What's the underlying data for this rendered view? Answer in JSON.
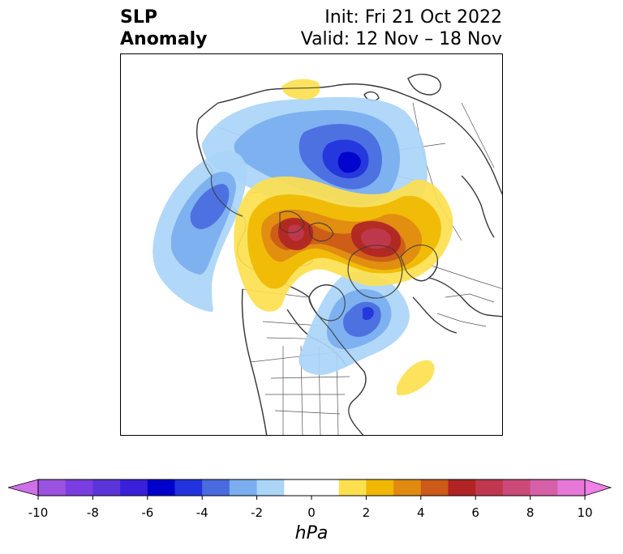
{
  "title": {
    "line1": "SLP",
    "line2": "Anomaly"
  },
  "init": "Init: Fri 21 Oct 2022",
  "valid": "Valid: 12 Nov – 18 Nov",
  "colorbar": {
    "unit": "hPa",
    "ticks": [
      "-10",
      "-8",
      "-6",
      "-4",
      "-2",
      "0",
      "2",
      "4",
      "6",
      "8",
      "10"
    ],
    "bins": [
      {
        "from": -10,
        "to": -9,
        "color": "#9b52e0"
      },
      {
        "from": -9,
        "to": -8,
        "color": "#7a3ee0"
      },
      {
        "from": -8,
        "to": -7,
        "color": "#5b35d8"
      },
      {
        "from": -7,
        "to": -6,
        "color": "#3a20d8"
      },
      {
        "from": -6,
        "to": -5,
        "color": "#0000cc"
      },
      {
        "from": -5,
        "to": -4,
        "color": "#2233dd"
      },
      {
        "from": -4,
        "to": -3,
        "color": "#4a6be0"
      },
      {
        "from": -3,
        "to": -2,
        "color": "#7aaeef"
      },
      {
        "from": -2,
        "to": -1,
        "color": "#aad5f7"
      },
      {
        "from": -1,
        "to": 1,
        "color": "#ffffff"
      },
      {
        "from": 1,
        "to": 2,
        "color": "#fde050"
      },
      {
        "from": 2,
        "to": 3,
        "color": "#f0b800"
      },
      {
        "from": 3,
        "to": 4,
        "color": "#e08a12"
      },
      {
        "from": 4,
        "to": 5,
        "color": "#cc5a18"
      },
      {
        "from": 5,
        "to": 6,
        "color": "#b02424"
      },
      {
        "from": 6,
        "to": 7,
        "color": "#c0384f"
      },
      {
        "from": 7,
        "to": 8,
        "color": "#cc4a78"
      },
      {
        "from": 8,
        "to": 9,
        "color": "#d660a8"
      },
      {
        "from": 9,
        "to": 10,
        "color": "#e878d8"
      }
    ],
    "under_color": "#d070e8",
    "over_color": "#ee80e6"
  },
  "anomalies": [
    {
      "id": "siberia-low",
      "sign": "negative",
      "peak_hpa": -6,
      "levels": [
        -2,
        -3,
        -4,
        -5,
        -6
      ]
    },
    {
      "id": "north-pacific-low",
      "sign": "negative",
      "peak_hpa": -4,
      "levels": [
        -2,
        -3,
        -4
      ]
    },
    {
      "id": "eastern-canada-low",
      "sign": "negative",
      "peak_hpa": -4,
      "levels": [
        -2,
        -3,
        -4
      ]
    },
    {
      "id": "polar-high-west",
      "sign": "positive",
      "peak_hpa": 6,
      "levels": [
        2,
        3,
        4,
        5,
        6
      ]
    },
    {
      "id": "polar-high-east",
      "sign": "positive",
      "peak_hpa": 6,
      "levels": [
        2,
        3,
        4,
        5,
        6
      ]
    },
    {
      "id": "north-atlantic-high",
      "sign": "positive",
      "peak_hpa": 2,
      "levels": [
        2
      ]
    },
    {
      "id": "arctic-small-high",
      "sign": "positive",
      "peak_hpa": 2,
      "levels": [
        2
      ]
    }
  ]
}
